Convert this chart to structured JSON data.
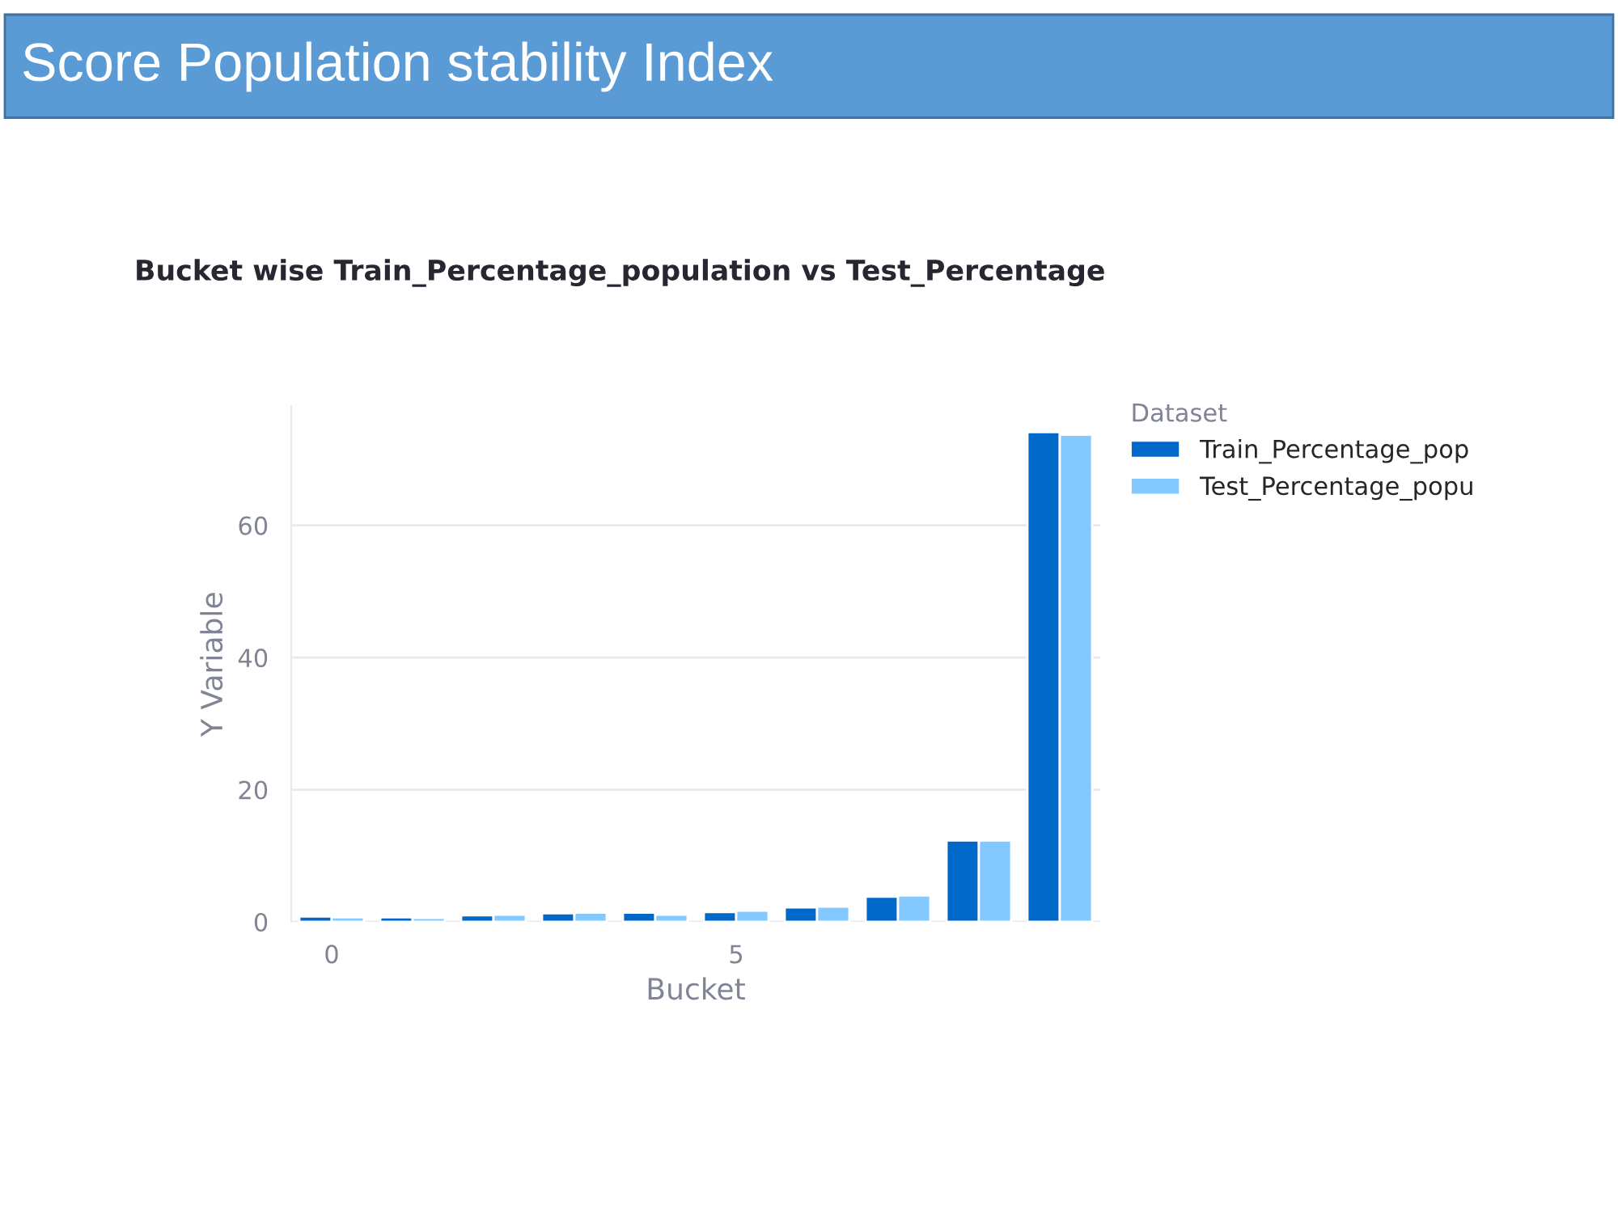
{
  "chart_data": {
    "type": "bar",
    "title": "Score Population stability Index",
    "subtitle": "Bucket wise Train_Percentage_population vs Test_Percentage",
    "xlabel": "Bucket",
    "ylabel": "Y Variable",
    "legend_title": "Dataset",
    "x": [
      0,
      1,
      2,
      3,
      4,
      5,
      6,
      7,
      8,
      9
    ],
    "series": [
      {
        "name": "Train_Percentage_pop",
        "color": "#0068c9",
        "values": [
          0.8,
          0.7,
          1.0,
          1.3,
          1.4,
          1.5,
          2.2,
          3.8,
          12.3,
          74.1
        ]
      },
      {
        "name": "Test_Percentage_popu",
        "color": "#83c9ff",
        "values": [
          0.7,
          0.6,
          1.1,
          1.4,
          1.1,
          1.7,
          2.3,
          4.0,
          12.3,
          73.7
        ]
      }
    ],
    "xlim": [
      -0.5,
      9.5
    ],
    "xticks": [
      0,
      5
    ],
    "ylim": [
      0,
      78
    ],
    "yticks": [
      0,
      20,
      40,
      60
    ],
    "grid": "y",
    "legend": "top right"
  }
}
